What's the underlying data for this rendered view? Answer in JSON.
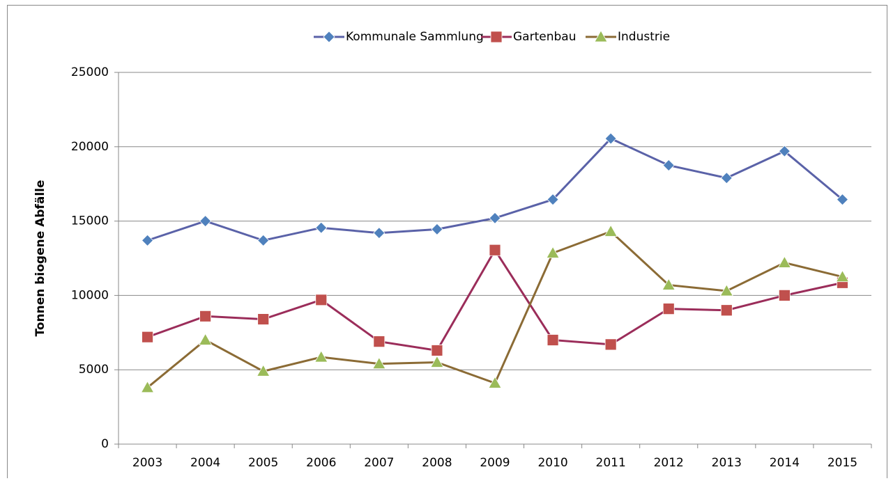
{
  "chart_data": {
    "type": "line",
    "y_label": "Tonnen biogene Abfälle",
    "categories": [
      "2003",
      "2004",
      "2005",
      "2006",
      "2007",
      "2008",
      "2009",
      "2010",
      "2011",
      "2012",
      "2013",
      "2014",
      "2015"
    ],
    "series": [
      {
        "name": "Kommunale Sammlung",
        "color": "#4f81bd",
        "line_color": "#5a62a8",
        "marker": "diamond",
        "values": [
          13700,
          15000,
          13700,
          14550,
          14200,
          14450,
          15200,
          16450,
          20550,
          18750,
          17900,
          19700,
          16450
        ]
      },
      {
        "name": "Gartenbau",
        "color": "#c0504d",
        "line_color": "#9b2d5a",
        "marker": "square",
        "values": [
          7200,
          8600,
          8400,
          9700,
          6900,
          6300,
          13050,
          7000,
          6700,
          9100,
          9000,
          10000,
          10850
        ]
      },
      {
        "name": "Industrie",
        "color": "#9bbb59",
        "line_color": "#8b6b35",
        "marker": "triangle",
        "values": [
          3800,
          7000,
          4900,
          5850,
          5400,
          5500,
          4100,
          12850,
          14300,
          10700,
          10300,
          12200,
          11250
        ]
      }
    ],
    "ylim": [
      0,
      25000
    ],
    "yticks": [
      0,
      5000,
      10000,
      15000,
      20000,
      25000
    ],
    "grid": true,
    "legend": "top"
  }
}
